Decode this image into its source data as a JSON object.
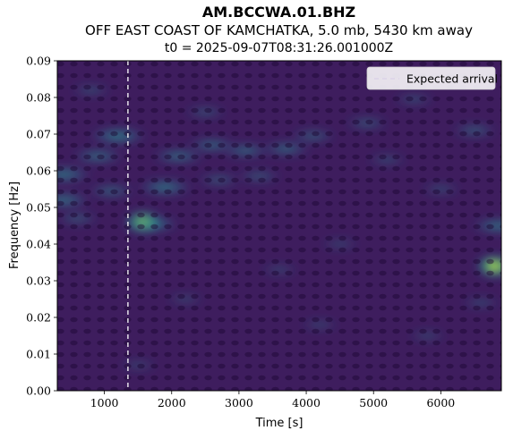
{
  "header": {
    "title": "AM.BCCWA.01.BHZ",
    "subtitle": "OFF EAST COAST OF KAMCHATKA, 5.0 mb, 5430 km away",
    "t0_line": "t0 = 2025-09-07T08:31:26.001000Z"
  },
  "chart_data": {
    "type": "heatmap",
    "title": "AM.BCCWA.01.BHZ",
    "xlabel": "Time [s]",
    "ylabel": "Frequency [Hz]",
    "xlim": [
      300,
      6900
    ],
    "ylim": [
      0.0,
      0.09
    ],
    "x_ticks": [
      1000,
      2000,
      3000,
      4000,
      5000,
      6000
    ],
    "x_tick_labels": [
      "1000",
      "2000",
      "3000",
      "4000",
      "5000",
      "6000"
    ],
    "y_ticks": [
      0.0,
      0.01,
      0.02,
      0.03,
      0.04,
      0.05,
      0.06,
      0.07,
      0.08,
      0.09
    ],
    "y_tick_labels": [
      "0.00",
      "0.01",
      "0.02",
      "0.03",
      "0.04",
      "0.05",
      "0.06",
      "0.07",
      "0.08",
      "0.09"
    ],
    "colormap": "viridis",
    "expected_arrival_time": 1350,
    "legend": {
      "placement": "top-right",
      "entries": [
        {
          "label": "Expected arrival",
          "style": "dashed",
          "color": "#ffffff"
        }
      ]
    },
    "energy_regions": [
      {
        "time": 1580,
        "frequency": 0.046,
        "intensity": 1.0
      },
      {
        "time": 1700,
        "frequency": 0.0455,
        "intensity": 0.6
      },
      {
        "time": 6800,
        "frequency": 0.034,
        "intensity": 0.95
      },
      {
        "time": 6850,
        "frequency": 0.045,
        "intensity": 0.55
      },
      {
        "time": 400,
        "frequency": 0.059,
        "intensity": 0.6
      },
      {
        "time": 400,
        "frequency": 0.052,
        "intensity": 0.55
      },
      {
        "time": 1200,
        "frequency": 0.0695,
        "intensity": 0.65
      },
      {
        "time": 900,
        "frequency": 0.064,
        "intensity": 0.5
      },
      {
        "time": 1900,
        "frequency": 0.0555,
        "intensity": 0.6
      },
      {
        "time": 2100,
        "frequency": 0.064,
        "intensity": 0.5
      },
      {
        "time": 2600,
        "frequency": 0.067,
        "intensity": 0.45
      },
      {
        "time": 3100,
        "frequency": 0.0655,
        "intensity": 0.45
      },
      {
        "time": 3700,
        "frequency": 0.066,
        "intensity": 0.45
      },
      {
        "time": 4100,
        "frequency": 0.0695,
        "intensity": 0.35
      },
      {
        "time": 4900,
        "frequency": 0.073,
        "intensity": 0.3
      },
      {
        "time": 6500,
        "frequency": 0.071,
        "intensity": 0.35
      },
      {
        "time": 2700,
        "frequency": 0.0575,
        "intensity": 0.3
      },
      {
        "time": 3300,
        "frequency": 0.0585,
        "intensity": 0.3
      },
      {
        "time": 1100,
        "frequency": 0.0545,
        "intensity": 0.4
      },
      {
        "time": 600,
        "frequency": 0.047,
        "intensity": 0.3
      },
      {
        "time": 2500,
        "frequency": 0.076,
        "intensity": 0.25
      },
      {
        "time": 800,
        "frequency": 0.082,
        "intensity": 0.22
      },
      {
        "time": 5600,
        "frequency": 0.0795,
        "intensity": 0.22
      },
      {
        "time": 6000,
        "frequency": 0.055,
        "intensity": 0.2
      },
      {
        "time": 5200,
        "frequency": 0.063,
        "intensity": 0.2
      },
      {
        "time": 4500,
        "frequency": 0.04,
        "intensity": 0.15
      },
      {
        "time": 3600,
        "frequency": 0.033,
        "intensity": 0.15
      },
      {
        "time": 2200,
        "frequency": 0.025,
        "intensity": 0.15
      },
      {
        "time": 5800,
        "frequency": 0.015,
        "intensity": 0.15
      },
      {
        "time": 1500,
        "frequency": 0.007,
        "intensity": 0.15
      },
      {
        "time": 4200,
        "frequency": 0.018,
        "intensity": 0.15
      },
      {
        "time": 6600,
        "frequency": 0.024,
        "intensity": 0.18
      }
    ]
  }
}
